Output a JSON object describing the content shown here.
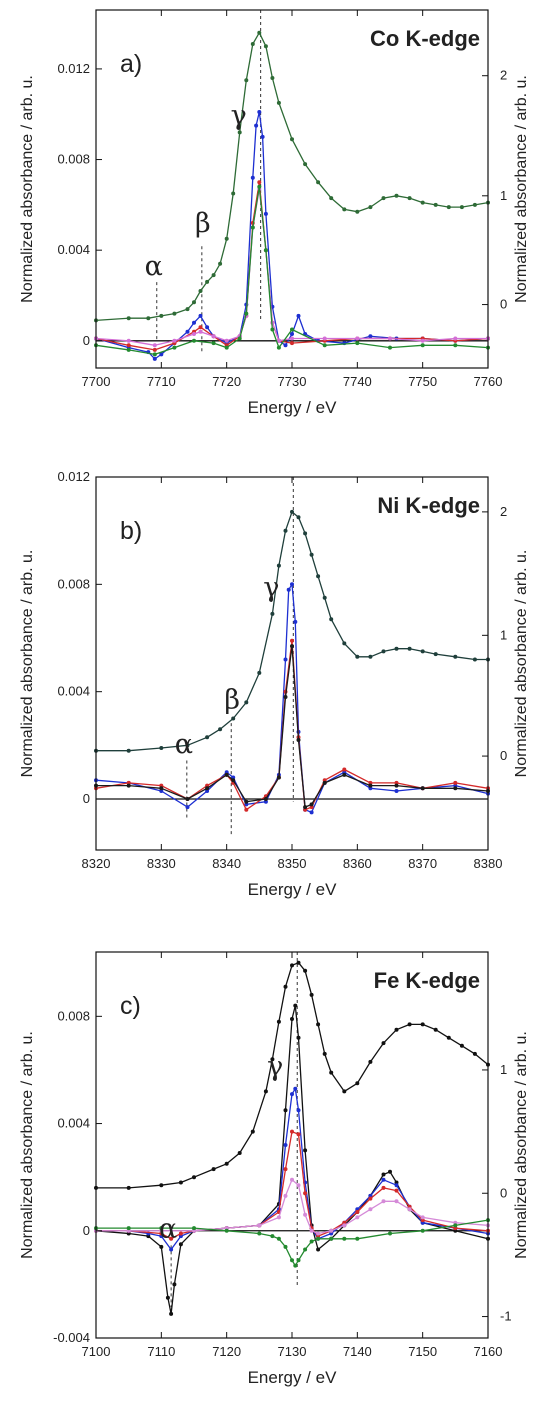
{
  "chart_data": [
    {
      "type": "line",
      "panel_label": "a)",
      "title": "Co K-edge",
      "xlabel": "Energy / eV",
      "ylabel": "Normalized absorbance / arb. u.",
      "ylabel_right": "Normalized absorbance / arb. u.",
      "xlim": [
        7700,
        7760
      ],
      "ylim": [
        -0.0012,
        0.0146
      ],
      "xticks": [
        "7700",
        "7710",
        "7720",
        "7730",
        "7740",
        "7750",
        "7760"
      ],
      "yticks": [
        "0",
        "0.004",
        "0.008",
        "0.012"
      ],
      "ytick_values": [
        0,
        0.004,
        0.008,
        0.012
      ],
      "right_ticks": [
        "0",
        "1",
        "2"
      ],
      "right_tick_values": [
        0.0016,
        0.0064,
        0.0117
      ],
      "peak_labels": [
        {
          "symbol": "α",
          "x": 7709.3
        },
        {
          "symbol": "β",
          "x": 7716.2
        },
        {
          "symbol": "γ",
          "x": 7725.2
        }
      ],
      "series": [
        {
          "color": "#2e6b36",
          "axis": "right",
          "x": [
            7700,
            7705,
            7708,
            7710,
            7712,
            7714,
            7715,
            7716,
            7717,
            7718,
            7719,
            7720,
            7721,
            7722,
            7723,
            7724,
            7725,
            7726,
            7727,
            7728,
            7730,
            7732,
            7734,
            7736,
            7738,
            7740,
            7742,
            7744,
            7746,
            7748,
            7750,
            7752,
            7754,
            7756,
            7758,
            7760
          ],
          "y": [
            0.0009,
            0.001,
            0.001,
            0.0011,
            0.0012,
            0.0014,
            0.0017,
            0.0022,
            0.0026,
            0.0029,
            0.0034,
            0.0045,
            0.0065,
            0.0092,
            0.0115,
            0.0131,
            0.0136,
            0.013,
            0.0116,
            0.0105,
            0.0089,
            0.0078,
            0.007,
            0.0063,
            0.0058,
            0.0057,
            0.0059,
            0.0063,
            0.0064,
            0.0063,
            0.0061,
            0.006,
            0.0059,
            0.0059,
            0.006,
            0.0061
          ]
        },
        {
          "color": "#1d2fd1",
          "axis": "left",
          "x": [
            7700,
            7705,
            7708,
            7709,
            7710,
            7712,
            7714,
            7715,
            7716,
            7717,
            7718,
            7720,
            7722,
            7723,
            7724,
            7724.5,
            7725,
            7725.5,
            7726,
            7727,
            7728,
            7729,
            7730,
            7731,
            7732,
            7734,
            7738,
            7742,
            7746,
            7750,
            7755,
            7760
          ],
          "y": [
            0.0001,
            -0.0003,
            -0.0005,
            -0.0008,
            -0.0006,
            -0.0001,
            0.0004,
            0.0008,
            0.0011,
            0.0006,
            0.0002,
            -0.0001,
            0.0002,
            0.0016,
            0.0072,
            0.0095,
            0.0101,
            0.009,
            0.0056,
            0.0015,
            0.0,
            -0.0002,
            0.0003,
            0.0011,
            0.0003,
            0.0,
            -0.0001,
            0.0002,
            0.0001,
            0.0001,
            0.0,
            0.0001
          ]
        },
        {
          "color": "#d42a2a",
          "axis": "left",
          "x": [
            7700,
            7705,
            7709,
            7712,
            7715,
            7716,
            7718,
            7720,
            7722,
            7723,
            7724,
            7725,
            7726,
            7727,
            7728,
            7730,
            7735,
            7740,
            7745,
            7750,
            7755,
            7760
          ],
          "y": [
            0.0001,
            -0.0002,
            -0.0004,
            -0.0001,
            0.0004,
            0.0006,
            0.0002,
            -0.0002,
            0.0002,
            0.0011,
            0.0052,
            0.007,
            0.004,
            0.0008,
            0.0,
            -0.0001,
            0.0,
            0.0001,
            0.0001,
            0.0001,
            0.0,
            0.0001
          ]
        },
        {
          "color": "#d36fd6",
          "axis": "left",
          "x": [
            7700,
            7705,
            7709,
            7712,
            7715,
            7716,
            7718,
            7720,
            7722,
            7723,
            7724,
            7725,
            7726,
            7727,
            7728,
            7730,
            7735,
            7740,
            7745,
            7750,
            7755,
            7760
          ],
          "y": [
            0.0001,
            0.0,
            -0.0002,
            0.0,
            0.0003,
            0.0004,
            0.0002,
            0.0,
            0.0002,
            0.0011,
            0.005,
            0.0067,
            0.004,
            0.0008,
            0.0,
            0.0001,
            0.0001,
            0.0001,
            0.0001,
            0.0,
            0.0001,
            0.0001
          ]
        },
        {
          "color": "#238a2f",
          "axis": "left",
          "x": [
            7700,
            7705,
            7709,
            7712,
            7715,
            7718,
            7720,
            7722,
            7723,
            7724,
            7725,
            7726,
            7727,
            7728,
            7730,
            7735,
            7740,
            7745,
            7750,
            7755,
            7760
          ],
          "y": [
            -0.0002,
            -0.0004,
            -0.0006,
            -0.0003,
            0.0,
            -0.0001,
            -0.0003,
            0.0001,
            0.0012,
            0.005,
            0.0068,
            0.004,
            0.0005,
            -0.0003,
            0.0005,
            -0.0002,
            -0.0001,
            -0.0003,
            -0.0002,
            -0.0002,
            -0.0003
          ]
        }
      ]
    },
    {
      "type": "line",
      "panel_label": "b)",
      "title": "Ni K-edge",
      "xlabel": "Energy / eV",
      "ylabel": "Normalized absorbance / arb. u.",
      "ylabel_right": "Normalized absorbance / arb. u.",
      "xlim": [
        8320,
        8380
      ],
      "ylim": [
        -0.0019,
        0.012
      ],
      "xticks": [
        "8320",
        "8330",
        "8340",
        "8350",
        "8360",
        "8370",
        "8380"
      ],
      "yticks": [
        "0",
        "0.004",
        "0.008",
        "0.012"
      ],
      "ytick_values": [
        0,
        0.004,
        0.008,
        0.012
      ],
      "right_ticks": [
        "0",
        "1",
        "2"
      ],
      "right_tick_values": [
        0.0016,
        0.0061,
        0.0107
      ],
      "peak_labels": [
        {
          "symbol": "α",
          "x": 8333.9
        },
        {
          "symbol": "β",
          "x": 8340.7
        },
        {
          "symbol": "γ",
          "x": 8350.2
        }
      ],
      "series": [
        {
          "color": "#1f3f3b",
          "axis": "right",
          "x": [
            8320,
            8325,
            8330,
            8334,
            8337,
            8339,
            8341,
            8343,
            8345,
            8347,
            8348,
            8349,
            8350,
            8351,
            8352,
            8353,
            8354,
            8355,
            8356,
            8358,
            8360,
            8362,
            8364,
            8366,
            8368,
            8370,
            8372,
            8375,
            8378,
            8380
          ],
          "y": [
            0.0018,
            0.0018,
            0.0019,
            0.002,
            0.0023,
            0.0026,
            0.003,
            0.0036,
            0.0047,
            0.0069,
            0.0087,
            0.01,
            0.0107,
            0.0105,
            0.0099,
            0.0091,
            0.0083,
            0.0075,
            0.0067,
            0.0058,
            0.0053,
            0.0053,
            0.0055,
            0.0056,
            0.0056,
            0.0055,
            0.0054,
            0.0053,
            0.0052,
            0.0052
          ]
        },
        {
          "color": "#1d2fd1",
          "axis": "left",
          "x": [
            8320,
            8325,
            8330,
            8334,
            8337,
            8340,
            8341,
            8343,
            8346,
            8348,
            8349,
            8349.5,
            8350,
            8350.5,
            8351,
            8352,
            8353,
            8355,
            8358,
            8362,
            8366,
            8370,
            8375,
            8380
          ],
          "y": [
            0.0007,
            0.0006,
            0.0003,
            -0.0003,
            0.0003,
            0.001,
            0.0008,
            -0.0002,
            -0.0001,
            0.0009,
            0.0052,
            0.0078,
            0.008,
            0.0066,
            0.0025,
            -0.0004,
            -0.0005,
            0.0006,
            0.001,
            0.0004,
            0.0003,
            0.0004,
            0.0005,
            0.0002
          ]
        },
        {
          "color": "#d42a2a",
          "axis": "left",
          "x": [
            8320,
            8325,
            8330,
            8334,
            8337,
            8340,
            8341,
            8343,
            8346,
            8348,
            8349,
            8350,
            8351,
            8352,
            8353,
            8355,
            8358,
            8362,
            8366,
            8370,
            8375,
            8380
          ],
          "y": [
            0.0004,
            0.0006,
            0.0005,
            0.0,
            0.0005,
            0.0009,
            0.0006,
            -0.0004,
            0.0001,
            0.0008,
            0.004,
            0.0059,
            0.0023,
            -0.0004,
            -0.0003,
            0.0007,
            0.0011,
            0.0006,
            0.0006,
            0.0004,
            0.0006,
            0.0004
          ]
        },
        {
          "color": "#1b1b1b",
          "axis": "left",
          "x": [
            8320,
            8325,
            8330,
            8334,
            8337,
            8340,
            8341,
            8343,
            8346,
            8348,
            8349,
            8350,
            8351,
            8352,
            8353,
            8355,
            8358,
            8362,
            8366,
            8370,
            8375,
            8380
          ],
          "y": [
            0.0005,
            0.0005,
            0.0004,
            0.0,
            0.0004,
            0.0009,
            0.0007,
            -0.0001,
            0.0,
            0.0008,
            0.0038,
            0.0057,
            0.0022,
            -0.0003,
            -0.0002,
            0.0006,
            0.0009,
            0.0005,
            0.0005,
            0.0004,
            0.0004,
            0.0003
          ]
        }
      ]
    },
    {
      "type": "line",
      "panel_label": "c)",
      "title": "Fe K-edge",
      "xlabel": "Energy / eV",
      "ylabel": "Normalized absorbance / arb. u.",
      "ylabel_right": "Normalized absorbance / arb. u.",
      "xlim": [
        7100,
        7160
      ],
      "ylim": [
        -0.004,
        0.0104
      ],
      "xticks": [
        "7100",
        "7110",
        "7120",
        "7130",
        "7140",
        "7150",
        "7160"
      ],
      "yticks": [
        "-0.004",
        "0",
        "0.004",
        "0.008"
      ],
      "ytick_values": [
        -0.004,
        0,
        0.004,
        0.008
      ],
      "right_ticks": [
        "-1",
        "0",
        "1"
      ],
      "right_tick_values": [
        -0.0032,
        0.0014,
        0.006
      ],
      "peak_labels": [
        {
          "symbol": "α",
          "x": 7111.5
        },
        {
          "symbol": "γ",
          "x": 7130.8
        }
      ],
      "series": [
        {
          "color": "#111111",
          "axis": "right",
          "x": [
            7100,
            7105,
            7110,
            7113,
            7115,
            7118,
            7120,
            7122,
            7124,
            7126,
            7127,
            7128,
            7129,
            7130,
            7131,
            7132,
            7133,
            7134,
            7135,
            7136,
            7138,
            7140,
            7142,
            7144,
            7146,
            7148,
            7150,
            7152,
            7154,
            7156,
            7158,
            7160
          ],
          "y": [
            0.0016,
            0.0016,
            0.0017,
            0.0018,
            0.002,
            0.0023,
            0.0025,
            0.0029,
            0.0037,
            0.0052,
            0.0064,
            0.0078,
            0.0091,
            0.0099,
            0.01,
            0.0097,
            0.0088,
            0.0077,
            0.0066,
            0.0059,
            0.0052,
            0.0055,
            0.0063,
            0.007,
            0.0075,
            0.0077,
            0.0077,
            0.0075,
            0.0072,
            0.0069,
            0.0066,
            0.0062
          ]
        },
        {
          "color": "#111111",
          "axis": "left",
          "x": [
            7100,
            7105,
            7108,
            7110,
            7111,
            7111.5,
            7112,
            7113,
            7115,
            7120,
            7125,
            7128,
            7129,
            7130,
            7130.5,
            7131,
            7132,
            7133,
            7134,
            7136,
            7138,
            7140,
            7142,
            7144,
            7145,
            7146,
            7148,
            7150,
            7155,
            7160
          ],
          "y": [
            0.0,
            -0.0001,
            -0.0002,
            -0.0006,
            -0.0025,
            -0.0031,
            -0.002,
            -0.0005,
            0.0,
            0.0001,
            0.0002,
            0.001,
            0.0045,
            0.0079,
            0.0084,
            0.0072,
            0.003,
            0.0002,
            -0.0007,
            -0.0003,
            0.0002,
            0.0007,
            0.0013,
            0.0021,
            0.0022,
            0.0018,
            0.0008,
            0.0003,
            0.0,
            -0.0003
          ]
        },
        {
          "color": "#1d2fd1",
          "axis": "left",
          "x": [
            7100,
            7105,
            7108,
            7110,
            7111.5,
            7113,
            7115,
            7120,
            7125,
            7128,
            7129,
            7130,
            7130.5,
            7131,
            7132,
            7133,
            7134,
            7136,
            7138,
            7140,
            7142,
            7144,
            7146,
            7148,
            7150,
            7155,
            7160
          ],
          "y": [
            0.0,
            0.0,
            -0.0001,
            -0.0002,
            -0.0007,
            -0.0002,
            0.0,
            0.0001,
            0.0002,
            0.0008,
            0.0032,
            0.0051,
            0.0053,
            0.0045,
            0.0018,
            0.0001,
            -0.0003,
            -0.0001,
            0.0003,
            0.0008,
            0.0013,
            0.0019,
            0.0017,
            0.0009,
            0.0003,
            0.0001,
            -0.0001
          ]
        },
        {
          "color": "#d42a2a",
          "axis": "left",
          "x": [
            7100,
            7105,
            7110,
            7111.5,
            7113,
            7115,
            7120,
            7125,
            7128,
            7129,
            7130,
            7131,
            7132,
            7133,
            7134,
            7136,
            7138,
            7140,
            7142,
            7144,
            7146,
            7148,
            7150,
            7155,
            7160
          ],
          "y": [
            0.0,
            0.0,
            -0.0001,
            -0.0003,
            -0.0001,
            0.0,
            0.0001,
            0.0002,
            0.0007,
            0.0023,
            0.0037,
            0.0036,
            0.0014,
            0.0001,
            -0.0002,
            0.0,
            0.0003,
            0.0007,
            0.0012,
            0.0016,
            0.0015,
            0.0009,
            0.0004,
            0.0001,
            0.0
          ]
        },
        {
          "color": "#d58ad8",
          "axis": "left",
          "x": [
            7100,
            7105,
            7110,
            7115,
            7120,
            7125,
            7128,
            7129,
            7130,
            7131,
            7132,
            7133,
            7134,
            7136,
            7138,
            7140,
            7142,
            7144,
            7146,
            7148,
            7150,
            7155,
            7160
          ],
          "y": [
            0.0,
            0.0,
            0.0,
            0.0,
            0.0001,
            0.0002,
            0.0005,
            0.0013,
            0.0019,
            0.0017,
            0.0006,
            0.0,
            -0.0001,
            0.0,
            0.0002,
            0.0005,
            0.0008,
            0.0011,
            0.0011,
            0.0008,
            0.0005,
            0.0003,
            0.0002
          ]
        },
        {
          "color": "#238a2f",
          "axis": "left",
          "x": [
            7100,
            7105,
            7110,
            7115,
            7120,
            7125,
            7127,
            7128,
            7129,
            7130,
            7130.5,
            7131,
            7132,
            7133,
            7134,
            7136,
            7138,
            7140,
            7145,
            7150,
            7155,
            7160
          ],
          "y": [
            0.0001,
            0.0001,
            0.0001,
            0.0001,
            0.0,
            -0.0001,
            -0.0002,
            -0.0003,
            -0.0006,
            -0.0011,
            -0.0013,
            -0.0011,
            -0.0007,
            -0.0004,
            -0.0003,
            -0.0003,
            -0.0003,
            -0.0003,
            -0.0001,
            0.0,
            0.0002,
            0.0004
          ]
        }
      ]
    }
  ]
}
